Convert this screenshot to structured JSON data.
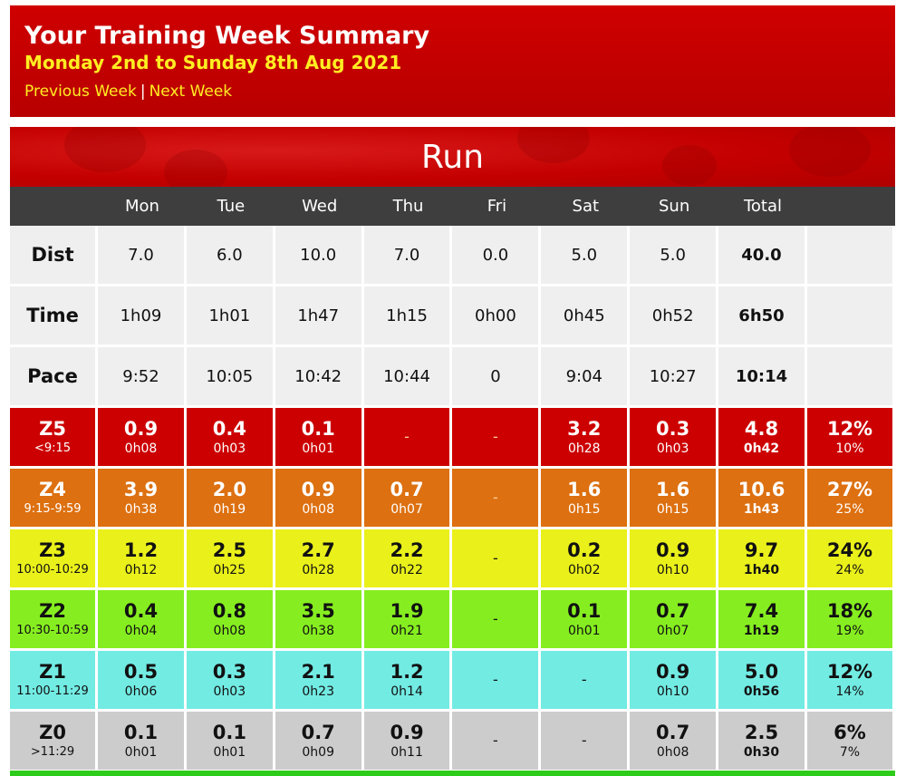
{
  "header": {
    "title": "Your Training Week Summary",
    "subtitle": "Monday 2nd to Sunday 8th Aug 2021",
    "prev_label": "Previous Week",
    "separator": "|",
    "next_label": "Next Week"
  },
  "section": {
    "title": "Run"
  },
  "columns": [
    "Mon",
    "Tue",
    "Wed",
    "Thu",
    "Fri",
    "Sat",
    "Sun",
    "Total"
  ],
  "basic_rows": [
    {
      "label": "Dist",
      "values": [
        "7.0",
        "6.0",
        "10.0",
        "7.0",
        "0.0",
        "5.0",
        "5.0",
        "40.0"
      ]
    },
    {
      "label": "Time",
      "values": [
        "1h09",
        "1h01",
        "1h47",
        "1h15",
        "0h00",
        "0h45",
        "0h52",
        "6h50"
      ]
    },
    {
      "label": "Pace",
      "values": [
        "9:52",
        "10:05",
        "10:42",
        "10:44",
        "0",
        "9:04",
        "10:27",
        "10:14"
      ]
    }
  ],
  "zones": [
    {
      "name": "Z5",
      "range": "<9:15",
      "days": [
        [
          "0.9",
          "0h08"
        ],
        [
          "0.4",
          "0h03"
        ],
        [
          "0.1",
          "0h01"
        ],
        [
          "-",
          ""
        ],
        [
          "-",
          ""
        ],
        [
          "3.2",
          "0h28"
        ],
        [
          "0.3",
          "0h03"
        ]
      ],
      "total": [
        "4.8",
        "0h42"
      ],
      "pct": [
        "12%",
        "10%"
      ]
    },
    {
      "name": "Z4",
      "range": "9:15-9:59",
      "days": [
        [
          "3.9",
          "0h38"
        ],
        [
          "2.0",
          "0h19"
        ],
        [
          "0.9",
          "0h08"
        ],
        [
          "0.7",
          "0h07"
        ],
        [
          "-",
          ""
        ],
        [
          "1.6",
          "0h15"
        ],
        [
          "1.6",
          "0h15"
        ]
      ],
      "total": [
        "10.6",
        "1h43"
      ],
      "pct": [
        "27%",
        "25%"
      ]
    },
    {
      "name": "Z3",
      "range": "10:00-10:29",
      "days": [
        [
          "1.2",
          "0h12"
        ],
        [
          "2.5",
          "0h25"
        ],
        [
          "2.7",
          "0h28"
        ],
        [
          "2.2",
          "0h22"
        ],
        [
          "-",
          ""
        ],
        [
          "0.2",
          "0h02"
        ],
        [
          "0.9",
          "0h10"
        ]
      ],
      "total": [
        "9.7",
        "1h40"
      ],
      "pct": [
        "24%",
        "24%"
      ]
    },
    {
      "name": "Z2",
      "range": "10:30-10:59",
      "days": [
        [
          "0.4",
          "0h04"
        ],
        [
          "0.8",
          "0h08"
        ],
        [
          "3.5",
          "0h38"
        ],
        [
          "1.9",
          "0h21"
        ],
        [
          "-",
          ""
        ],
        [
          "0.1",
          "0h01"
        ],
        [
          "0.7",
          "0h07"
        ]
      ],
      "total": [
        "7.4",
        "1h19"
      ],
      "pct": [
        "18%",
        "19%"
      ]
    },
    {
      "name": "Z1",
      "range": "11:00-11:29",
      "days": [
        [
          "0.5",
          "0h06"
        ],
        [
          "0.3",
          "0h03"
        ],
        [
          "2.1",
          "0h23"
        ],
        [
          "1.2",
          "0h14"
        ],
        [
          "-",
          ""
        ],
        [
          "-",
          ""
        ],
        [
          "0.9",
          "0h10"
        ]
      ],
      "total": [
        "5.0",
        "0h56"
      ],
      "pct": [
        "12%",
        "14%"
      ]
    },
    {
      "name": "Z0",
      "range": ">11:29",
      "days": [
        [
          "0.1",
          "0h01"
        ],
        [
          "0.1",
          "0h01"
        ],
        [
          "0.7",
          "0h09"
        ],
        [
          "0.9",
          "0h11"
        ],
        [
          "-",
          ""
        ],
        [
          "-",
          ""
        ],
        [
          "0.7",
          "0h08"
        ]
      ],
      "total": [
        "2.5",
        "0h30"
      ],
      "pct": [
        "6%",
        "7%"
      ]
    }
  ],
  "colors": {
    "header_red": "#cc0000",
    "header_yellow": "#ffee22",
    "table_head": "#3e3e3e",
    "z5": "#cc0000",
    "z4": "#dd7010",
    "z3": "#eaf01a",
    "z2": "#86ee20",
    "z1": "#72ebe3",
    "z0": "#cccccc"
  }
}
